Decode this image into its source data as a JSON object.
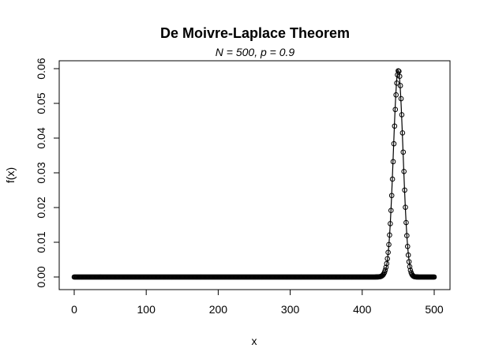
{
  "chart_data": {
    "type": "scatter",
    "title": "De Moivre-Laplace Theorem",
    "subtitle": "N = 500,  p = 0.9",
    "xlabel": "x",
    "ylabel": "f(x)",
    "xlim": [
      0,
      500
    ],
    "ylim": [
      0,
      0.06
    ],
    "x_ticks": [
      "0",
      "100",
      "200",
      "300",
      "400",
      "500"
    ],
    "y_ticks": [
      "0.00",
      "0.01",
      "0.02",
      "0.03",
      "0.04",
      "0.05",
      "0.06"
    ],
    "grid": false,
    "legend": "none",
    "series": [
      {
        "kind": "points",
        "description": "Binomial(500, 0.9) probability mass at integer x from 0 to 500 (circles)",
        "x_start": 0,
        "x_end": 500,
        "n": 500,
        "p": 0.9
      },
      {
        "kind": "line",
        "description": "Normal approximation curve with mean 450 and sd 6.708",
        "mean": 450,
        "sd": 6.708
      }
    ],
    "peak": {
      "x": 450,
      "y": 0.0594
    }
  }
}
